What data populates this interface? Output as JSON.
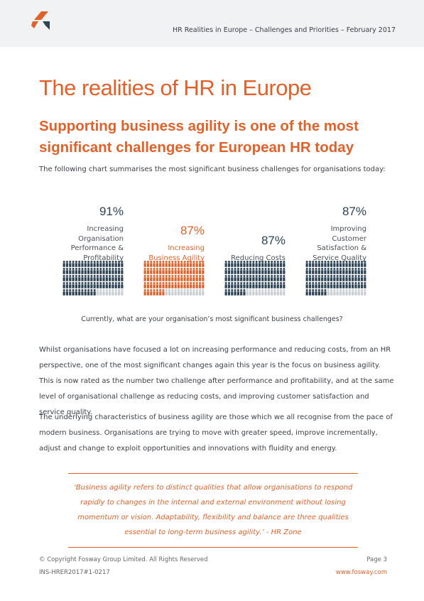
{
  "header": {
    "text": "HR Realities in Europe – Challenges and Priorities – February 2017"
  },
  "title": "The realities of HR in Europe",
  "subtitle": "Supporting business agility is one of the most significant challenges for European HR today",
  "intro": "The following chart summarises the most significant business challenges for organisations today:",
  "chart_data": {
    "type": "pictogram",
    "categories": [
      "Increasing Organisation Performance & Profitability",
      "Increasing Business Agility",
      "Reducing Costs",
      "Improving Customer Satisfaction & Service Quality"
    ],
    "values": [
      91,
      87,
      87,
      87
    ],
    "value_labels": [
      "91%",
      "87%",
      "87%",
      "87%"
    ],
    "colors": [
      "#2d4356",
      "#e0622a",
      "#2d4356",
      "#2d4356"
    ],
    "empty_color": "#c8cdd1",
    "ylim": [
      0,
      100
    ],
    "caption": "Currently, what are your organisation’s most significant business challenges?"
  },
  "paragraphs": [
    "Whilst organisations have focused a lot on increasing performance and reducing costs, from an HR perspective, one of the most significant changes again this year is the focus on business agility. This is now rated as the number two challenge after performance and profitability, and at the same level of organisational challenge as reducing costs, and improving customer satisfaction and service quality.",
    "The underlying characteristics of business agility are those which we all recognise from the pace of modern business. Organisations are trying to move with greater speed, improve incrementally, adjust and change to exploit opportunities and innovations with fluidity and energy."
  ],
  "quote": "‘Business agility refers to distinct qualities that allow organisations to respond rapidly to changes in the internal and external environment without losing momentum or vision. Adaptability, flexibility and balance are three qualities essential to long-term business agility.’ - HR Zone",
  "footer": {
    "copyright": "© Copyright Fosway Group Limited. All Rights Reserved",
    "page": "Page 3",
    "code": "INS-HRER2017#1-0217",
    "url": "www.fosway.com"
  }
}
